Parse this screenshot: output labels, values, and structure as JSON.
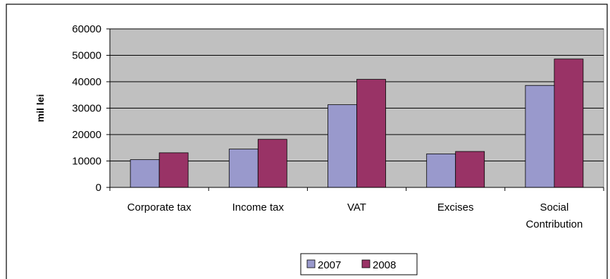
{
  "chart_data": {
    "type": "bar",
    "title": "",
    "xlabel": "",
    "ylabel": "mil lei",
    "ylim": [
      0,
      60000
    ],
    "yticks": [
      0,
      10000,
      20000,
      30000,
      40000,
      50000,
      60000
    ],
    "categories": [
      "Corporate tax",
      "Income tax",
      "VAT",
      "Excises",
      "Social Contribution"
    ],
    "series": [
      {
        "name": "2007",
        "color": "#9999cc",
        "values": [
          10500,
          14500,
          31300,
          12700,
          38600
        ]
      },
      {
        "name": "2008",
        "color": "#993366",
        "values": [
          13100,
          18200,
          40900,
          13600,
          48600
        ]
      }
    ],
    "grid": true,
    "legend_position": "bottom"
  }
}
